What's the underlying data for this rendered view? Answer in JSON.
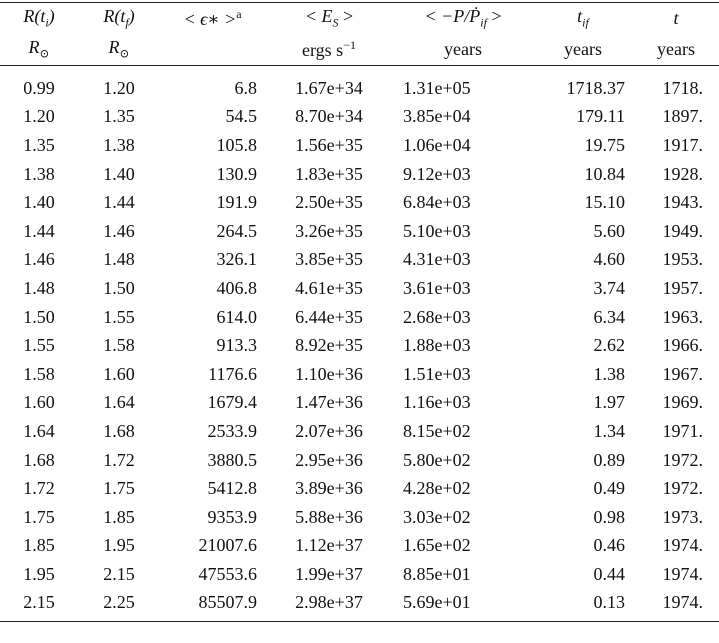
{
  "table": {
    "header": [
      [
        [
          {
            "text": "R(t",
            "italic": true
          },
          {
            "text": "i",
            "sub": true,
            "italic": true
          },
          {
            "text": ")",
            "italic": true
          }
        ],
        [
          {
            "text": "R(t",
            "italic": true
          },
          {
            "text": "f",
            "sub": true,
            "italic": true
          },
          {
            "text": ")",
            "italic": true
          }
        ],
        [
          {
            "text": "< ϵ∗ >",
            "italic": true
          },
          {
            "text": "a",
            "sup": true
          }
        ],
        [
          {
            "text": "< E",
            "italic": true
          },
          {
            "text": "S",
            "sub": true,
            "italic": true
          },
          {
            "text": " >"
          }
        ],
        [
          {
            "text": "< −P/Ṗ",
            "italic": true
          },
          {
            "text": "if",
            "sub": true,
            "italic": true
          },
          {
            "text": " >"
          }
        ],
        [
          {
            "text": "t",
            "italic": true
          },
          {
            "text": "if",
            "sub": true,
            "italic": true
          }
        ],
        [
          {
            "text": "t",
            "italic": true
          }
        ]
      ],
      [
        [
          {
            "text": "R",
            "italic": true
          },
          {
            "text": "⊙",
            "sub": true
          }
        ],
        [
          {
            "text": "R",
            "italic": true
          },
          {
            "text": "⊙",
            "sub": true
          }
        ],
        [],
        [
          {
            "text": "ergs s"
          },
          {
            "text": "−1",
            "sup": true
          }
        ],
        [
          {
            "text": "years"
          }
        ],
        [
          {
            "text": "years"
          }
        ],
        [
          {
            "text": "years"
          }
        ]
      ]
    ],
    "rows": [
      [
        "0.99",
        "1.20",
        "6.8",
        "1.67e+34",
        "1.31e+05",
        "1718.37",
        "1718."
      ],
      [
        "1.20",
        "1.35",
        "54.5",
        "8.70e+34",
        "3.85e+04",
        "179.11",
        "1897."
      ],
      [
        "1.35",
        "1.38",
        "105.8",
        "1.56e+35",
        "1.06e+04",
        "19.75",
        "1917."
      ],
      [
        "1.38",
        "1.40",
        "130.9",
        "1.83e+35",
        "9.12e+03",
        "10.84",
        "1928."
      ],
      [
        "1.40",
        "1.44",
        "191.9",
        "2.50e+35",
        "6.84e+03",
        "15.10",
        "1943."
      ],
      [
        "1.44",
        "1.46",
        "264.5",
        "3.26e+35",
        "5.10e+03",
        "5.60",
        "1949."
      ],
      [
        "1.46",
        "1.48",
        "326.1",
        "3.85e+35",
        "4.31e+03",
        "4.60",
        "1953."
      ],
      [
        "1.48",
        "1.50",
        "406.8",
        "4.61e+35",
        "3.61e+03",
        "3.74",
        "1957."
      ],
      [
        "1.50",
        "1.55",
        "614.0",
        "6.44e+35",
        "2.68e+03",
        "6.34",
        "1963."
      ],
      [
        "1.55",
        "1.58",
        "913.3",
        "8.92e+35",
        "1.88e+03",
        "2.62",
        "1966."
      ],
      [
        "1.58",
        "1.60",
        "1176.6",
        "1.10e+36",
        "1.51e+03",
        "1.38",
        "1967."
      ],
      [
        "1.60",
        "1.64",
        "1679.4",
        "1.47e+36",
        "1.16e+03",
        "1.97",
        "1969."
      ],
      [
        "1.64",
        "1.68",
        "2533.9",
        "2.07e+36",
        "8.15e+02",
        "1.34",
        "1971."
      ],
      [
        "1.68",
        "1.72",
        "3880.5",
        "2.95e+36",
        "5.80e+02",
        "0.89",
        "1972."
      ],
      [
        "1.72",
        "1.75",
        "5412.8",
        "3.89e+36",
        "4.28e+02",
        "0.49",
        "1972."
      ],
      [
        "1.75",
        "1.85",
        "9353.9",
        "5.88e+36",
        "3.03e+02",
        "0.98",
        "1973."
      ],
      [
        "1.85",
        "1.95",
        "21007.6",
        "1.12e+37",
        "1.65e+02",
        "0.46",
        "1974."
      ],
      [
        "1.95",
        "2.15",
        "47553.6",
        "1.99e+37",
        "8.85e+01",
        "0.44",
        "1974."
      ],
      [
        "2.15",
        "2.25",
        "85507.9",
        "2.98e+37",
        "5.69e+01",
        "0.13",
        "1974."
      ]
    ]
  }
}
